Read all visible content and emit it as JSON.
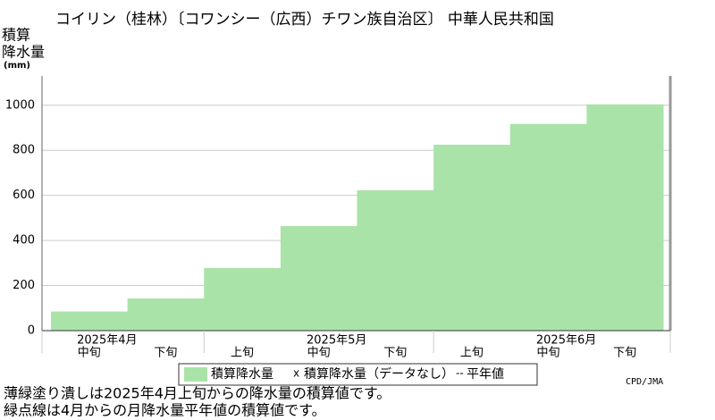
{
  "chart_data": {
    "type": "step-area",
    "title": "コイリン（桂林）〔コワンシー（広西）チワン族自治区〕 中華人民共和国",
    "ylabel": [
      "積算",
      "降水量",
      "(mm)"
    ],
    "categories": [
      "中旬",
      "下旬",
      "上旬",
      "中旬",
      "下旬",
      "上旬",
      "中旬",
      "下旬"
    ],
    "months": [
      "2025年4月",
      "2025年5月",
      "2025年6月"
    ],
    "series": [
      {
        "name": "積算降水量",
        "color": "#aae3a8",
        "values": [
          85,
          143,
          278,
          464,
          623,
          825,
          917,
          1004
        ]
      }
    ],
    "legend_extra": [
      {
        "marker": "x",
        "name": "積算降水量（データなし）"
      },
      {
        "marker": "‐‐",
        "name": "平年値"
      }
    ],
    "ylim": [
      0,
      1130
    ],
    "yticks": [
      0,
      200,
      400,
      600,
      800,
      1000
    ],
    "grid": true,
    "credit": "CPD/JMA",
    "notes": [
      "薄緑塗り潰しは2025年4月上旬からの降水量の積算値です。",
      "緑点線は4月からの月降水量平年値の積算値です。"
    ]
  }
}
